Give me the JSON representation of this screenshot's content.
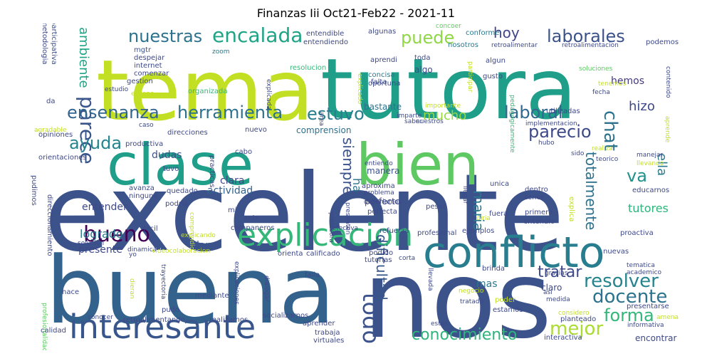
{
  "title": "Finanzas Iii Oct21-Feb22 - 2021-11",
  "words": [
    {
      "text": "excelente",
      "color": "#3b528b"
    },
    {
      "text": "buena",
      "color": "#33638d"
    },
    {
      "text": "nos",
      "color": "#3b528b"
    },
    {
      "text": "tema",
      "color": "#c2df23"
    },
    {
      "text": "tutora",
      "color": "#1f9e89"
    },
    {
      "text": "clase",
      "color": "#1f9e89"
    },
    {
      "text": "bien",
      "color": "#5ec962"
    },
    {
      "text": "conflicto",
      "color": "#287d8e"
    },
    {
      "text": "interesante",
      "color": "#39568c"
    },
    {
      "text": "explicacion",
      "color": "#35b779"
    },
    {
      "text": "parece",
      "color": "#39568c"
    },
    {
      "text": "encalada",
      "color": "#20a486"
    },
    {
      "text": "nuestras",
      "color": "#2c728e"
    },
    {
      "text": "puede",
      "color": "#8fd744"
    },
    {
      "text": "hoy",
      "color": "#404688"
    },
    {
      "text": "laborales",
      "color": "#3b528b"
    },
    {
      "text": "ensenanza",
      "color": "#32648e"
    },
    {
      "text": "herramienta",
      "color": "#2d708e"
    },
    {
      "text": "estuvo",
      "color": "#287d8e"
    },
    {
      "text": "mucho",
      "color": "#95d840"
    },
    {
      "text": "laboral",
      "color": "#31688e"
    },
    {
      "text": "chat",
      "color": "#2c728e"
    },
    {
      "text": "parecio",
      "color": "#3e4989"
    },
    {
      "text": "ayuda",
      "color": "#25848e"
    },
    {
      "text": "ambiente",
      "color": "#20a486"
    },
    {
      "text": "hizo",
      "color": "#3e4989"
    },
    {
      "text": "ella",
      "color": "#2a788e"
    },
    {
      "text": "bueno",
      "color": "#440154"
    },
    {
      "text": "siempre",
      "color": "#3b528b"
    },
    {
      "text": "va",
      "color": "#21918c"
    },
    {
      "text": "totalmente",
      "color": "#2c728e"
    },
    {
      "text": "resolver",
      "color": "#25848e"
    },
    {
      "text": "docente",
      "color": "#2c728e"
    },
    {
      "text": "todo",
      "color": "#3b528b"
    },
    {
      "text": "tratar",
      "color": "#3e4989"
    },
    {
      "text": "forma",
      "color": "#32b67a"
    },
    {
      "text": "mejor",
      "color": "#aadc32"
    },
    {
      "text": "conocimiento",
      "color": "#2fb47c"
    },
    {
      "text": "dificultad",
      "color": "#38588c"
    },
    {
      "text": "maria",
      "color": "#2a788e"
    },
    {
      "text": "ha",
      "color": "#2c728e"
    },
    {
      "text": "logrado",
      "color": "#2a788e"
    },
    {
      "text": "dar",
      "color": "#3b528b"
    },
    {
      "text": "entender",
      "color": "#3e4989"
    },
    {
      "text": "actividad",
      "color": "#33638d"
    },
    {
      "text": "clara",
      "color": "#414487"
    },
    {
      "text": "presente",
      "color": "#3e4989"
    },
    {
      "text": "tutores",
      "color": "#2fb47c"
    },
    {
      "text": "comprension",
      "color": "#2d708e"
    },
    {
      "text": "bastante",
      "color": "#2d708e"
    },
    {
      "text": "manera",
      "color": "#3b528b"
    },
    {
      "text": "dudas",
      "color": "#3b528b"
    },
    {
      "text": "hemos",
      "color": "#443983"
    },
    {
      "text": "claro",
      "color": "#3e4989"
    },
    {
      "text": "mas",
      "color": "#2a788e"
    },
    {
      "text": "metodologia",
      "color": "#3e4989"
    },
    {
      "text": "participativa",
      "color": "#3b528b"
    },
    {
      "text": "mgtr",
      "color": "#3b528b"
    },
    {
      "text": "despejar",
      "color": "#3e4989"
    },
    {
      "text": "internet",
      "color": "#3e4989"
    },
    {
      "text": "comenzar",
      "color": "#3e4989"
    },
    {
      "text": "gestion",
      "color": "#3e4989"
    },
    {
      "text": "ensena",
      "color": "#c2df23"
    },
    {
      "text": "estudio",
      "color": "#3e4989"
    },
    {
      "text": "zoom",
      "color": "#2a788e"
    },
    {
      "text": "organizada",
      "color": "#35b779"
    },
    {
      "text": "explicada",
      "color": "#3e4989"
    },
    {
      "text": "resolucion",
      "color": "#35b779"
    },
    {
      "text": "entendible",
      "color": "#3e4989"
    },
    {
      "text": "entendiendo",
      "color": "#3e4989"
    },
    {
      "text": "algunas",
      "color": "#3e4989"
    },
    {
      "text": "aprendi",
      "color": "#3e4989"
    },
    {
      "text": "nosotros",
      "color": "#2a788e"
    },
    {
      "text": "concoer",
      "color": "#5ec962"
    },
    {
      "text": "conforme",
      "color": "#2a788e"
    },
    {
      "text": "retroalimentar",
      "color": "#3e4989"
    },
    {
      "text": "retroalimentacion",
      "color": "#3e4989"
    },
    {
      "text": "podemos",
      "color": "#3e4989"
    },
    {
      "text": "toda",
      "color": "#3e4989"
    },
    {
      "text": "algo",
      "color": "#3e4989"
    },
    {
      "text": "falta",
      "color": "#3e4989"
    },
    {
      "text": "concisa",
      "color": "#2a788e"
    },
    {
      "text": "oportuna",
      "color": "#3e4989"
    },
    {
      "text": "explicado",
      "color": "#c2df23"
    },
    {
      "text": "participar",
      "color": "#c2df23"
    },
    {
      "text": "algun",
      "color": "#3e4989"
    },
    {
      "text": "gusto",
      "color": "#3e4989"
    },
    {
      "text": "pedagogicamente",
      "color": "#35b779"
    },
    {
      "text": "soluciones",
      "color": "#5ec962"
    },
    {
      "text": "tenemos",
      "color": "#c2df23"
    },
    {
      "text": "fecha",
      "color": "#3e4989"
    },
    {
      "text": "contenido",
      "color": "#3e4989"
    },
    {
      "text": "utilizadas",
      "color": "#3e4989"
    },
    {
      "text": "importante",
      "color": "#c2df23"
    },
    {
      "text": "imparte",
      "color": "#3e4989"
    },
    {
      "text": "saber",
      "color": "#3e4989"
    },
    {
      "text": "nuestros",
      "color": "#3e4989"
    },
    {
      "text": "implementacion",
      "color": "#3e4989"
    },
    {
      "text": "hubo",
      "color": "#3e4989"
    },
    {
      "text": "aprende",
      "color": "#c2df23"
    },
    {
      "text": "da",
      "color": "#3e4989"
    },
    {
      "text": "agradable",
      "color": "#c2df23"
    },
    {
      "text": "caso",
      "color": "#3e4989"
    },
    {
      "text": "opiniones",
      "color": "#3e4989"
    },
    {
      "text": "productiva",
      "color": "#3e4989"
    },
    {
      "text": "direcciones",
      "color": "#3e4989"
    },
    {
      "text": "practicas",
      "color": "#3e4989"
    },
    {
      "text": "nuevo",
      "color": "#3e4989"
    },
    {
      "text": "cabo",
      "color": "#3e4989"
    },
    {
      "text": "orientaciones",
      "color": "#3e4989"
    },
    {
      "text": "pudimos",
      "color": "#3e4989"
    },
    {
      "text": "tuvo",
      "color": "#3e4989"
    },
    {
      "text": "avanza",
      "color": "#3e4989"
    },
    {
      "text": "ninguna",
      "color": "#3e4989"
    },
    {
      "text": "quedado",
      "color": "#3e4989"
    },
    {
      "text": "podria",
      "color": "#3e4989"
    },
    {
      "text": "comprendio",
      "color": "#c2df23"
    },
    {
      "text": "mi",
      "color": "#3e4989"
    },
    {
      "text": "entiendo",
      "color": "#3e4989"
    },
    {
      "text": "aproxima",
      "color": "#3e4989"
    },
    {
      "text": "profesora",
      "color": "#3e4989"
    },
    {
      "text": "deberiamos",
      "color": "#3e4989"
    },
    {
      "text": "problema",
      "color": "#3e4989"
    },
    {
      "text": "efectiva",
      "color": "#3e4989"
    },
    {
      "text": "perfecta",
      "color": "#3e4989"
    },
    {
      "text": "perfecto",
      "color": "#3e4989"
    },
    {
      "text": "presenten",
      "color": "#3e4989"
    },
    {
      "text": "area",
      "color": "#3e4989"
    },
    {
      "text": "llegar",
      "color": "#3e4989"
    },
    {
      "text": "unica",
      "color": "#3e4989"
    },
    {
      "text": "dentro",
      "color": "#3e4989"
    },
    {
      "text": "tener",
      "color": "#3e4989"
    },
    {
      "text": "explica",
      "color": "#c2df23"
    },
    {
      "text": "educarnos",
      "color": "#3e4989"
    },
    {
      "text": "pesar",
      "color": "#3e4989"
    },
    {
      "text": "fuera",
      "color": "#3e4989"
    },
    {
      "text": "primera",
      "color": "#3e4989"
    },
    {
      "text": "diria",
      "color": "#c2df23"
    },
    {
      "text": "entendio",
      "color": "#3e4989"
    },
    {
      "text": "refuerza",
      "color": "#3e4989"
    },
    {
      "text": "profesional",
      "color": "#3e4989"
    },
    {
      "text": "ejemplos",
      "color": "#3e4989"
    },
    {
      "text": "proactiva",
      "color": "#3e4989"
    },
    {
      "text": "realiza",
      "color": "#c2df23"
    },
    {
      "text": "teorico",
      "color": "#3e4989"
    },
    {
      "text": "manejar",
      "color": "#3e4989"
    },
    {
      "text": "llevando",
      "color": "#c2df23"
    },
    {
      "text": "sido",
      "color": "#3e4989"
    },
    {
      "text": "ante",
      "color": "#3e4989"
    },
    {
      "text": "companeros",
      "color": "#3e4989"
    },
    {
      "text": "facil",
      "color": "#3e4989"
    },
    {
      "text": "explicando",
      "color": "#c2df23"
    },
    {
      "text": "dinamica",
      "color": "#3e4989"
    },
    {
      "text": "videocolaboracion",
      "color": "#c2df23"
    },
    {
      "text": "orienta",
      "color": "#3e4989"
    },
    {
      "text": "calificado",
      "color": "#3e4989"
    },
    {
      "text": "solucion",
      "color": "#3e4989"
    },
    {
      "text": "yo",
      "color": "#3e4989"
    },
    {
      "text": "podido",
      "color": "#3e4989"
    },
    {
      "text": "tutorias",
      "color": "#3e4989"
    },
    {
      "text": "corta",
      "color": "#3e4989"
    },
    {
      "text": "nuevas",
      "color": "#3e4989"
    },
    {
      "text": "tematica",
      "color": "#3e4989"
    },
    {
      "text": "academico",
      "color": "#3e4989"
    },
    {
      "text": "gracias",
      "color": "#3e4989"
    },
    {
      "text": "asi",
      "color": "#3e4989"
    },
    {
      "text": "medida",
      "color": "#3e4989"
    },
    {
      "text": "brinda",
      "color": "#3e4989"
    },
    {
      "text": "negocio",
      "color": "#c2df23"
    },
    {
      "text": "llevada",
      "color": "#3e4989"
    },
    {
      "text": "poder",
      "color": "#c2df23"
    },
    {
      "text": "tratado",
      "color": "#3e4989"
    },
    {
      "text": "estamos",
      "color": "#3e4989"
    },
    {
      "text": "considero",
      "color": "#c2df23"
    },
    {
      "text": "planteado",
      "color": "#3e4989"
    },
    {
      "text": "presentarse",
      "color": "#3e4989"
    },
    {
      "text": "amena",
      "color": "#c2df23"
    },
    {
      "text": "informativa",
      "color": "#3e4989"
    },
    {
      "text": "interactiva",
      "color": "#3e4989"
    },
    {
      "text": "encontrar",
      "color": "#3e4989"
    },
    {
      "text": "profesionalidad",
      "color": "#5ec962"
    },
    {
      "text": "direccionamiento",
      "color": "#3e4989"
    },
    {
      "text": "trayectoria",
      "color": "#3e4989"
    },
    {
      "text": "dieran",
      "color": "#c2df23"
    },
    {
      "text": "explicaciones",
      "color": "#3e4989"
    },
    {
      "text": "dialogar",
      "color": "#3e4989"
    },
    {
      "text": "falla",
      "color": "#3e4989"
    },
    {
      "text": "hace",
      "color": "#3e4989"
    },
    {
      "text": "mediante",
      "color": "#3e4989"
    },
    {
      "text": "pudo",
      "color": "#3e4989"
    },
    {
      "text": "conocer",
      "color": "#3e4989"
    },
    {
      "text": "retroalimentando",
      "color": "#3e4989"
    },
    {
      "text": "realizamos",
      "color": "#3e4989"
    },
    {
      "text": "socializarnos",
      "color": "#3e4989"
    },
    {
      "text": "aprender",
      "color": "#3e4989"
    },
    {
      "text": "trabaja",
      "color": "#3e4989"
    },
    {
      "text": "virtuales",
      "color": "#3e4989"
    },
    {
      "text": "estas",
      "color": "#3e4989"
    },
    {
      "text": "calidad",
      "color": "#3e4989"
    }
  ]
}
